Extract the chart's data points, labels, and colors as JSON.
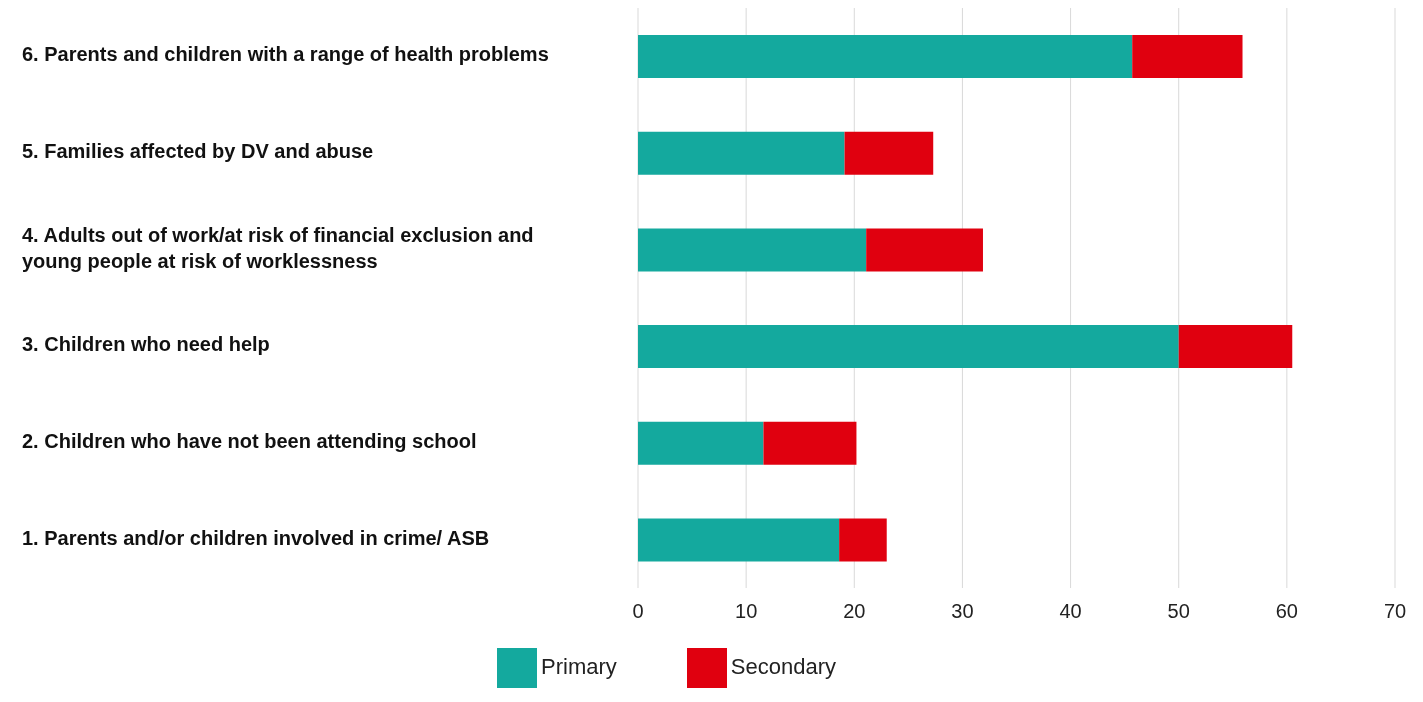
{
  "chart_data": {
    "type": "bar",
    "orientation": "horizontal",
    "stacked": true,
    "categories": [
      "6. Parents and children with a range of health problems",
      "5. Families affected by DV and abuse",
      "4. Adults out of work/at risk of financial exclusion and young people at risk of worklessness",
      "3. Children who need help",
      "2. Children who have not been attending school",
      "1. Parents and/or children involved in crime/ ASB"
    ],
    "series": [
      {
        "name": "Primary",
        "color": "#14a99e",
        "values": [
          45.7,
          19.1,
          21.1,
          50.0,
          11.6,
          18.6
        ]
      },
      {
        "name": "Secondary",
        "color": "#e0000f",
        "values": [
          10.2,
          8.2,
          10.8,
          10.5,
          8.6,
          4.4
        ]
      }
    ],
    "xlim": [
      0,
      70
    ],
    "xticks": [
      0,
      10,
      20,
      30,
      40,
      50,
      60,
      70
    ],
    "grid": "x",
    "legend": "bottom"
  }
}
